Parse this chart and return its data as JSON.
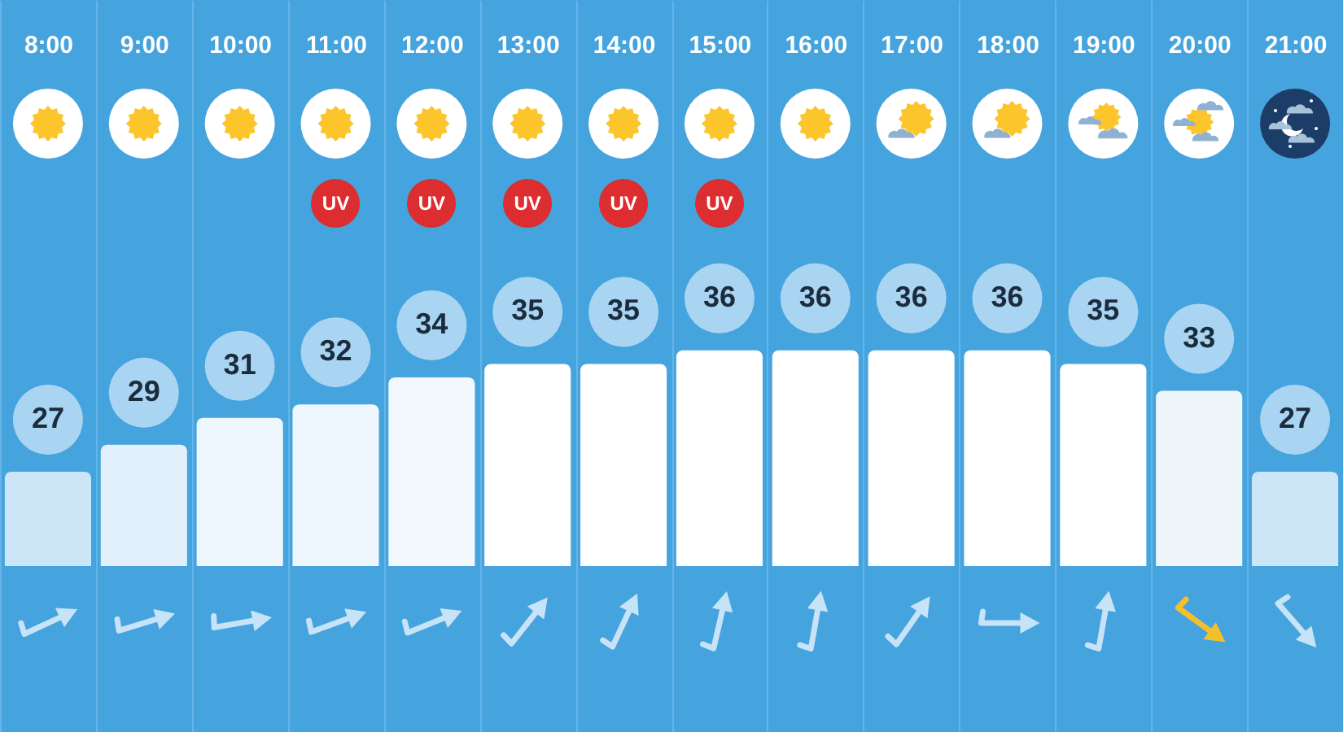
{
  "chart_data": {
    "type": "bar",
    "categories": [
      "8:00",
      "9:00",
      "10:00",
      "11:00",
      "12:00",
      "13:00",
      "14:00",
      "15:00",
      "16:00",
      "17:00",
      "18:00",
      "19:00",
      "20:00",
      "21:00"
    ],
    "values": [
      27,
      29,
      31,
      32,
      34,
      35,
      35,
      36,
      36,
      36,
      36,
      35,
      33,
      27
    ],
    "colors": [
      "#cce6f8",
      "#e2f0fb",
      "#eef7fd",
      "#eef7fd",
      "#f2f9fe",
      "#ffffff",
      "#ffffff",
      "#ffffff",
      "#ffffff",
      "#ffffff",
      "#ffffff",
      "#ffffff",
      "#eef6fc",
      "#cce6f8"
    ],
    "ylim": [
      20,
      62
    ],
    "data_labels": true,
    "grid": "x",
    "tick_labels": "x",
    "annotations": [
      {
        "text": "UV",
        "x": "11:00"
      },
      {
        "text": "UV",
        "x": "12:00"
      },
      {
        "text": "UV",
        "x": "13:00"
      },
      {
        "text": "UV",
        "x": "14:00"
      },
      {
        "text": "UV",
        "x": "15:00"
      }
    ]
  }
}
